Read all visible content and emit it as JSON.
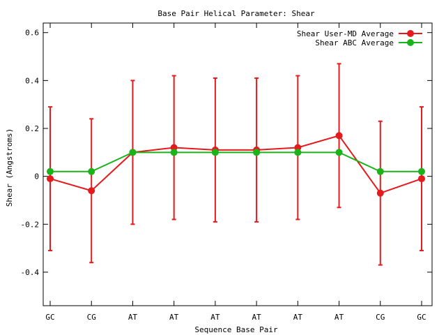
{
  "chart_data": {
    "type": "line",
    "title": "Base Pair Helical Parameter: Shear",
    "xlabel": "Sequence Base Pair",
    "ylabel": "Shear (Angstroms)",
    "categories": [
      "GC",
      "CG",
      "AT",
      "AT",
      "AT",
      "AT",
      "AT",
      "AT",
      "CG",
      "GC"
    ],
    "ylim": [
      -0.54,
      0.64
    ],
    "yticks": [
      -0.4,
      -0.2,
      0,
      0.2,
      0.4,
      0.6
    ],
    "ytick_labels": [
      "-0.4",
      "-0.2",
      "0",
      "0.2",
      "0.4",
      "0.6"
    ],
    "grid": false,
    "legend_position": "top-right",
    "series": [
      {
        "name": "Shear User-MD Average",
        "color": "#e41a1c",
        "values": [
          -0.01,
          -0.06,
          0.1,
          0.12,
          0.11,
          0.11,
          0.12,
          0.17,
          -0.07,
          -0.01
        ],
        "error_low": [
          -0.31,
          -0.36,
          -0.2,
          -0.18,
          -0.19,
          -0.19,
          -0.18,
          -0.13,
          -0.37,
          -0.31
        ],
        "error_high": [
          0.29,
          0.24,
          0.4,
          0.42,
          0.41,
          0.41,
          0.42,
          0.47,
          0.23,
          0.29
        ]
      },
      {
        "name": "Shear ABC Average",
        "color": "#1ab31a",
        "values": [
          0.02,
          0.02,
          0.1,
          0.1,
          0.1,
          0.1,
          0.1,
          0.1,
          0.02,
          0.02
        ]
      }
    ]
  }
}
